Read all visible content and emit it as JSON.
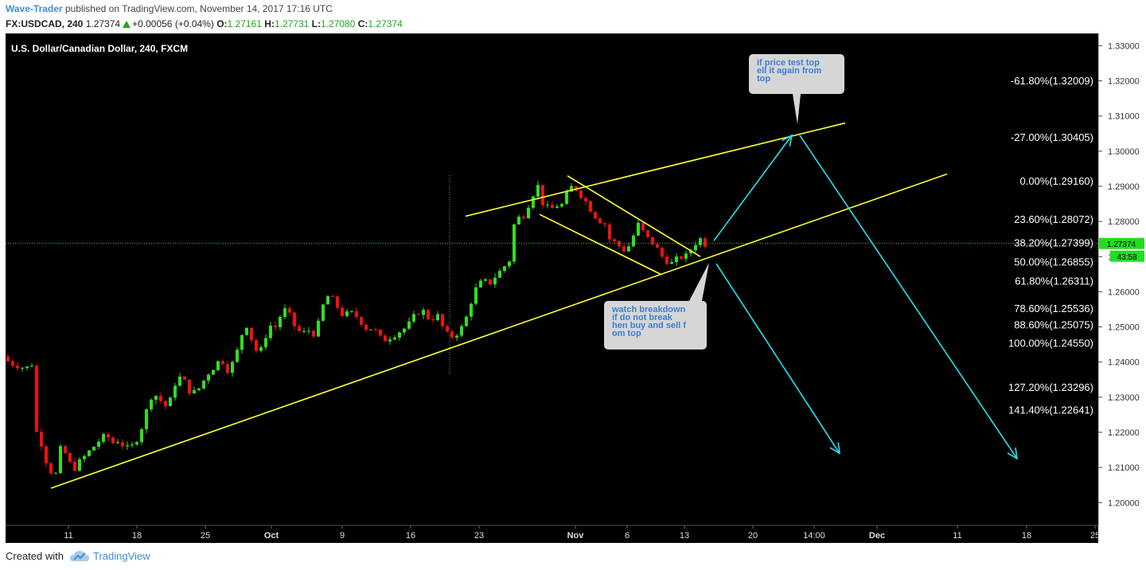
{
  "header": {
    "author": "Wave-Trader",
    "published_text": "published on TradingView.com, November 14, 2017 17:16 UTC",
    "symbol": "FX:USDCAD, 240",
    "last": "1.27374",
    "change": "+0.00056 (+0.04%)",
    "o_label": "O:",
    "o_value": "1.27161",
    "h_label": "H:",
    "h_value": "1.27731",
    "l_label": "L:",
    "l_value": "1.27080",
    "c_label": "C:",
    "c_value": "1.27374"
  },
  "footer": {
    "created_with": "Created with",
    "brand": "TradingView"
  },
  "chart_data": {
    "type": "candlestick",
    "title": "U.S. Dollar/Canadian Dollar, 240, FXCM",
    "timeframe": "240",
    "price_range": [
      1.1935,
      1.3335
    ],
    "y_ticks": [
      "1.33000",
      "1.32000",
      "1.31000",
      "1.30000",
      "1.29000",
      "1.28000",
      "1.27000",
      "1.26000",
      "1.25000",
      "1.24000",
      "1.23000",
      "1.22000",
      "1.21000",
      "1.20000"
    ],
    "x_ticks": [
      {
        "label": "11",
        "bold": false
      },
      {
        "label": "18",
        "bold": false
      },
      {
        "label": "25",
        "bold": false
      },
      {
        "label": "Oct",
        "bold": true
      },
      {
        "label": "9",
        "bold": false
      },
      {
        "label": "16",
        "bold": false
      },
      {
        "label": "23",
        "bold": false
      },
      {
        "label": "Nov",
        "bold": true
      },
      {
        "label": "6",
        "bold": false
      },
      {
        "label": "13",
        "bold": false
      },
      {
        "label": "20",
        "bold": false
      },
      {
        "label": "14:00",
        "bold": false
      },
      {
        "label": "Dec",
        "bold": true
      },
      {
        "label": "11",
        "bold": false
      },
      {
        "label": "18",
        "bold": false
      },
      {
        "label": "25",
        "bold": false
      }
    ],
    "current_price_label": "1.27374",
    "countdown_label": "43:58",
    "fib_levels": [
      {
        "label": "-61.80%(1.32009)",
        "price": 1.32009
      },
      {
        "label": "-27.00%(1.30405)",
        "price": 1.30405
      },
      {
        "label": "0.00%(1.29160)",
        "price": 1.2916
      },
      {
        "label": "23.60%(1.28072)",
        "price": 1.28072
      },
      {
        "label": "38.20%(1.27399)",
        "price": 1.27399
      },
      {
        "label": "50.00%(1.26855)",
        "price": 1.26855
      },
      {
        "label": "61.80%(1.26311)",
        "price": 1.26311
      },
      {
        "label": "78.60%(1.25536)",
        "price": 1.25536
      },
      {
        "label": "88.60%(1.25075)",
        "price": 1.25075
      },
      {
        "label": "100.00%(1.24550)",
        "price": 1.2455
      },
      {
        "label": "127.20%(1.23296)",
        "price": 1.23296
      },
      {
        "label": "141.40%(1.22641)",
        "price": 1.22641
      }
    ],
    "annotations": [
      {
        "text": "if price test top sell it again from top"
      },
      {
        "text": "watch breakdown if do not break then buy and sell from top"
      }
    ],
    "price_path": [
      [
        0,
        1.2415
      ],
      [
        6,
        1.2405
      ],
      [
        14,
        1.2395
      ],
      [
        22,
        1.239
      ],
      [
        30,
        1.238
      ],
      [
        38,
        1.2395
      ],
      [
        40,
        1.229
      ],
      [
        44,
        1.22
      ],
      [
        50,
        1.217
      ],
      [
        56,
        1.212
      ],
      [
        62,
        1.209
      ],
      [
        66,
        1.206
      ],
      [
        70,
        1.21
      ],
      [
        74,
        1.215
      ],
      [
        80,
        1.214
      ],
      [
        86,
        1.211
      ],
      [
        92,
        1.21
      ],
      [
        100,
        1.212
      ],
      [
        108,
        1.214
      ],
      [
        116,
        1.216
      ],
      [
        124,
        1.218
      ],
      [
        132,
        1.219
      ],
      [
        140,
        1.217
      ],
      [
        148,
        1.218
      ],
      [
        156,
        1.215
      ],
      [
        164,
        1.216
      ],
      [
        172,
        1.219
      ],
      [
        180,
        1.224
      ],
      [
        186,
        1.23
      ],
      [
        192,
        1.231
      ],
      [
        200,
        1.229
      ],
      [
        208,
        1.227
      ],
      [
        214,
        1.23
      ],
      [
        220,
        1.236
      ],
      [
        228,
        1.235
      ],
      [
        236,
        1.232
      ],
      [
        244,
        1.231
      ],
      [
        252,
        1.234
      ],
      [
        260,
        1.237
      ],
      [
        268,
        1.239
      ],
      [
        276,
        1.241
      ],
      [
        284,
        1.238
      ],
      [
        292,
        1.24
      ],
      [
        300,
        1.246
      ],
      [
        306,
        1.252
      ],
      [
        312,
        1.248
      ],
      [
        318,
        1.244
      ],
      [
        324,
        1.242
      ],
      [
        330,
        1.246
      ],
      [
        336,
        1.251
      ],
      [
        342,
        1.249
      ],
      [
        348,
        1.252
      ],
      [
        354,
        1.255
      ],
      [
        360,
        1.254
      ],
      [
        366,
        1.251
      ],
      [
        372,
        1.249
      ],
      [
        378,
        1.248
      ],
      [
        386,
        1.249
      ],
      [
        394,
        1.248
      ],
      [
        400,
        1.252
      ],
      [
        406,
        1.258
      ],
      [
        412,
        1.259
      ],
      [
        418,
        1.257
      ],
      [
        424,
        1.255
      ],
      [
        430,
        1.253
      ],
      [
        438,
        1.254
      ],
      [
        446,
        1.253
      ],
      [
        454,
        1.251
      ],
      [
        460,
        1.249
      ],
      [
        466,
        1.25
      ],
      [
        472,
        1.248
      ],
      [
        478,
        1.246
      ],
      [
        486,
        1.247
      ],
      [
        494,
        1.248
      ],
      [
        502,
        1.249
      ],
      [
        510,
        1.25
      ],
      [
        516,
        1.252
      ],
      [
        522,
        1.254
      ],
      [
        528,
        1.255
      ],
      [
        534,
        1.253
      ],
      [
        540,
        1.252
      ],
      [
        546,
        1.254
      ],
      [
        552,
        1.251
      ],
      [
        558,
        1.248
      ],
      [
        564,
        1.247
      ],
      [
        570,
        1.248
      ],
      [
        576,
        1.249
      ],
      [
        582,
        1.251
      ],
      [
        588,
        1.256
      ],
      [
        594,
        1.26
      ],
      [
        600,
        1.262
      ],
      [
        606,
        1.263
      ],
      [
        612,
        1.262
      ],
      [
        618,
        1.264
      ],
      [
        624,
        1.265
      ],
      [
        630,
        1.267
      ],
      [
        636,
        1.268
      ],
      [
        640,
        1.27
      ],
      [
        644,
        1.279
      ],
      [
        650,
        1.281
      ],
      [
        656,
        1.282
      ],
      [
        660,
        1.284
      ],
      [
        664,
        1.286
      ],
      [
        668,
        1.288
      ],
      [
        674,
        1.29
      ],
      [
        678,
        1.286
      ],
      [
        684,
        1.284
      ],
      [
        690,
        1.283
      ],
      [
        696,
        1.285
      ],
      [
        702,
        1.284
      ],
      [
        708,
        1.286
      ],
      [
        712,
        1.289
      ],
      [
        718,
        1.29
      ],
      [
        724,
        1.289
      ],
      [
        730,
        1.287
      ],
      [
        736,
        1.285
      ],
      [
        742,
        1.283
      ],
      [
        748,
        1.281
      ],
      [
        754,
        1.28
      ],
      [
        760,
        1.279
      ],
      [
        764,
        1.275
      ],
      [
        770,
        1.274
      ],
      [
        776,
        1.273
      ],
      [
        782,
        1.272
      ],
      [
        788,
        1.273
      ],
      [
        794,
        1.276
      ],
      [
        800,
        1.279
      ],
      [
        806,
        1.277
      ],
      [
        812,
        1.275
      ],
      [
        818,
        1.274
      ],
      [
        824,
        1.272
      ],
      [
        830,
        1.27
      ],
      [
        836,
        1.269
      ],
      [
        842,
        1.268
      ],
      [
        848,
        1.269
      ],
      [
        854,
        1.27
      ],
      [
        860,
        1.27
      ],
      [
        866,
        1.272
      ],
      [
        872,
        1.274
      ],
      [
        878,
        1.275
      ],
      [
        884,
        1.2737
      ]
    ],
    "trend_lines": [
      {
        "from": [
          64,
          1.2041
        ],
        "to": [
          1190,
          1.2935
        ]
      },
      {
        "from": [
          585,
          1.2815
        ],
        "to": [
          1062,
          1.308
        ]
      },
      {
        "from": [
          678,
          1.282
        ],
        "to": [
          830,
          1.265
        ]
      },
      {
        "from": [
          713,
          1.293
        ],
        "to": [
          880,
          1.27
        ]
      }
    ],
    "arrows": [
      {
        "from": [
          897,
          1.2745
        ],
        "to": [
          995,
          1.3045
        ]
      },
      {
        "from": [
          900,
          1.268
        ],
        "to": [
          1055,
          1.214
        ]
      },
      {
        "from": [
          1005,
          1.3045
        ],
        "to": [
          1278,
          1.2125
        ]
      }
    ],
    "candle_step": 6,
    "cursor_x": 565
  }
}
